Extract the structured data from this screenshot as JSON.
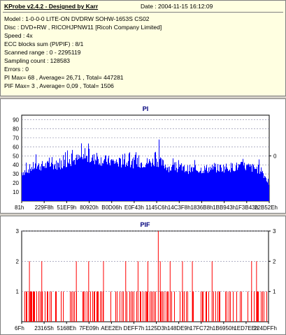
{
  "header": {
    "app_title": "KProbe v2.4.2 - Designed by Karr",
    "date": "Date : 2004-11-15 16:12:09"
  },
  "info": {
    "lines": [
      "Model : 1-0-0-0 LITE-ON DVDRW SOHW-1653S CS02",
      "Disc : DVD+RW , RICOHJPNW11 [Ricoh Company Limited]",
      "Speed : 4x",
      "ECC blocks sum (PI/PIF) : 8/1",
      "Scanned range : 0 - 2295119",
      "Sampling count : 128583",
      "Errors : 0",
      "PI Max= 68 , Average= 26,71 , Total= 447281",
      "PIF Max= 3 , Average= 0,09 , Total= 1506"
    ]
  },
  "chart_data": [
    {
      "type": "bar",
      "title": "PI",
      "series_color": "#0000ff",
      "ylim": [
        0,
        95
      ],
      "y_ticks": [
        "10",
        "20",
        "30",
        "40",
        "50",
        "60",
        "70",
        "80",
        "90"
      ],
      "y_tick_values": [
        10,
        20,
        30,
        40,
        50,
        60,
        70,
        80,
        90
      ],
      "right_axis_ticks": [
        "0"
      ],
      "right_axis_tick_values": [
        50
      ],
      "x_ticks": [
        "81h",
        "229F8h",
        "51EF9h",
        "80920h",
        "B0D06h",
        "E0F43h",
        "1145C6h",
        "14C3F8h",
        "1836B8h",
        "1BB943h",
        "1F3B43h",
        "22B52Eh"
      ],
      "max": 68,
      "average": 26.71,
      "profile_x": [
        0,
        0.05,
        0.15,
        0.25,
        0.3,
        0.4,
        0.5,
        0.55,
        0.6,
        0.7,
        0.8,
        0.9,
        0.97,
        1.0
      ],
      "profile_y": [
        33,
        40,
        42,
        50,
        48,
        44,
        44,
        46,
        38,
        36,
        38,
        40,
        36,
        20
      ],
      "spike_x": 0.555,
      "spike_value": 68
    },
    {
      "type": "bar",
      "title": "PIF",
      "series_color": "#ff0000",
      "ylim": [
        0,
        3
      ],
      "y_ticks": [
        "1",
        "2",
        "3"
      ],
      "y_tick_values": [
        1,
        2,
        3
      ],
      "right_axis_ticks": [
        "1",
        "2",
        "3"
      ],
      "right_axis_tick_values": [
        1,
        2,
        3
      ],
      "x_ticks": [
        "6Fh",
        "2316Sh",
        "5168Eh",
        "7FE09h",
        "AEE2Eh",
        "DEFF7h",
        "1125D3h",
        "148DE9h",
        "17FC72h",
        "1B6950h",
        "1ED7EEh",
        "224DFFh"
      ],
      "max": 3,
      "average": 0.09,
      "peaks_2_x": [
        0.03,
        0.08,
        0.22,
        0.27,
        0.33,
        0.42,
        0.47,
        0.51,
        0.56,
        0.6,
        0.65,
        0.69,
        0.77,
        0.93,
        0.95
      ],
      "peaks_3_x": [
        0.552
      ]
    }
  ]
}
